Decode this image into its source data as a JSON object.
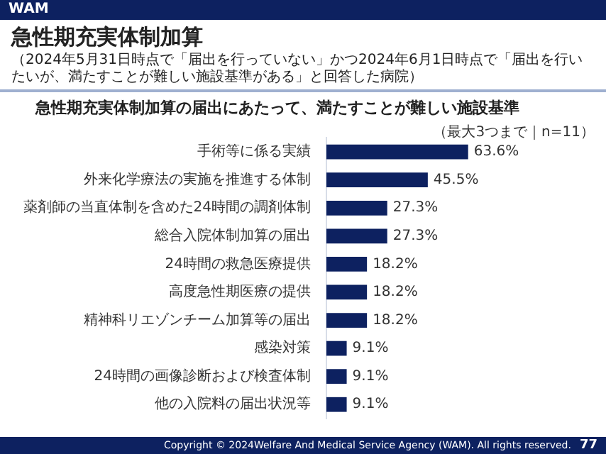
{
  "chart_data": {
    "type": "bar",
    "orientation": "horizontal",
    "title": "急性期充実体制加算の届出にあたって、満たすことが難しい施設基準",
    "categories": [
      "手術等に係る実績",
      "外来化学療法の実施を推進する体制",
      "薬剤師の当直体制を含めた24時間の調剤体制",
      "総合入院体制加算の届出",
      "24時間の救急医療提供",
      "高度急性期医療の提供",
      "精神科リエゾンチーム加算等の届出",
      "感染対策",
      "24時間の画像診断および検査体制",
      "他の入院料の届出状況等"
    ],
    "values": [
      63.6,
      45.5,
      27.3,
      27.3,
      18.2,
      18.2,
      18.2,
      9.1,
      9.1,
      9.1
    ],
    "value_labels": [
      "63.6%",
      "45.5%",
      "27.3%",
      "27.3%",
      "18.2%",
      "18.2%",
      "18.2%",
      "9.1%",
      "9.1%",
      "9.1%"
    ],
    "color": "#0d2160",
    "annotations": [
      "WAM",
      "急性期充実体制加算",
      "（2024年5月31日時点で「届出を行っていない」かつ2024年6月1日時点で「届出を行いたいが、満たすことが難しい施設基準がある」と回答した病院）",
      "（最大3つまで｜n=11）",
      "Copyright © 2024Welfare And Medical Service Agency (WAM). All rights reserved.",
      "77"
    ],
    "tick_labels": "y"
  }
}
